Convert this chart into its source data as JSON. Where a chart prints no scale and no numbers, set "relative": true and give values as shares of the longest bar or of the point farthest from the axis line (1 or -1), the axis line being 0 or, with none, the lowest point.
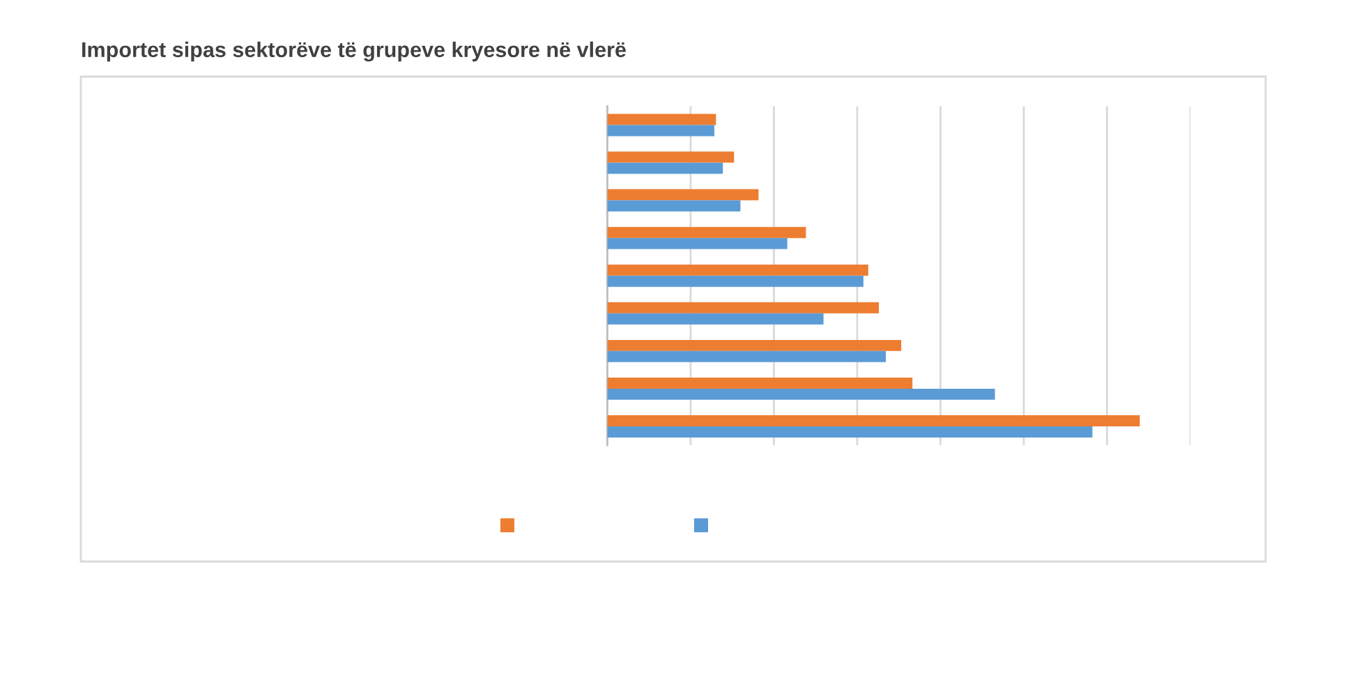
{
  "chart_data": {
    "type": "bar",
    "orientation": "horizontal",
    "relative": true,
    "title": "Importet sipas sektorëve të grupeve kryesore në vlerë",
    "categories": [
      null,
      null,
      null,
      null,
      null,
      null,
      null,
      null,
      null
    ],
    "series": [
      {
        "color": "#ed7d31",
        "values": [
          0.204,
          0.238,
          0.284,
          0.373,
          0.49,
          0.51,
          0.552,
          0.573,
          1.0
        ]
      },
      {
        "color": "#5b9bd5",
        "values": [
          0.201,
          0.217,
          0.25,
          0.338,
          0.481,
          0.406,
          0.523,
          0.728,
          0.911
        ]
      }
    ],
    "grid": "x"
  }
}
